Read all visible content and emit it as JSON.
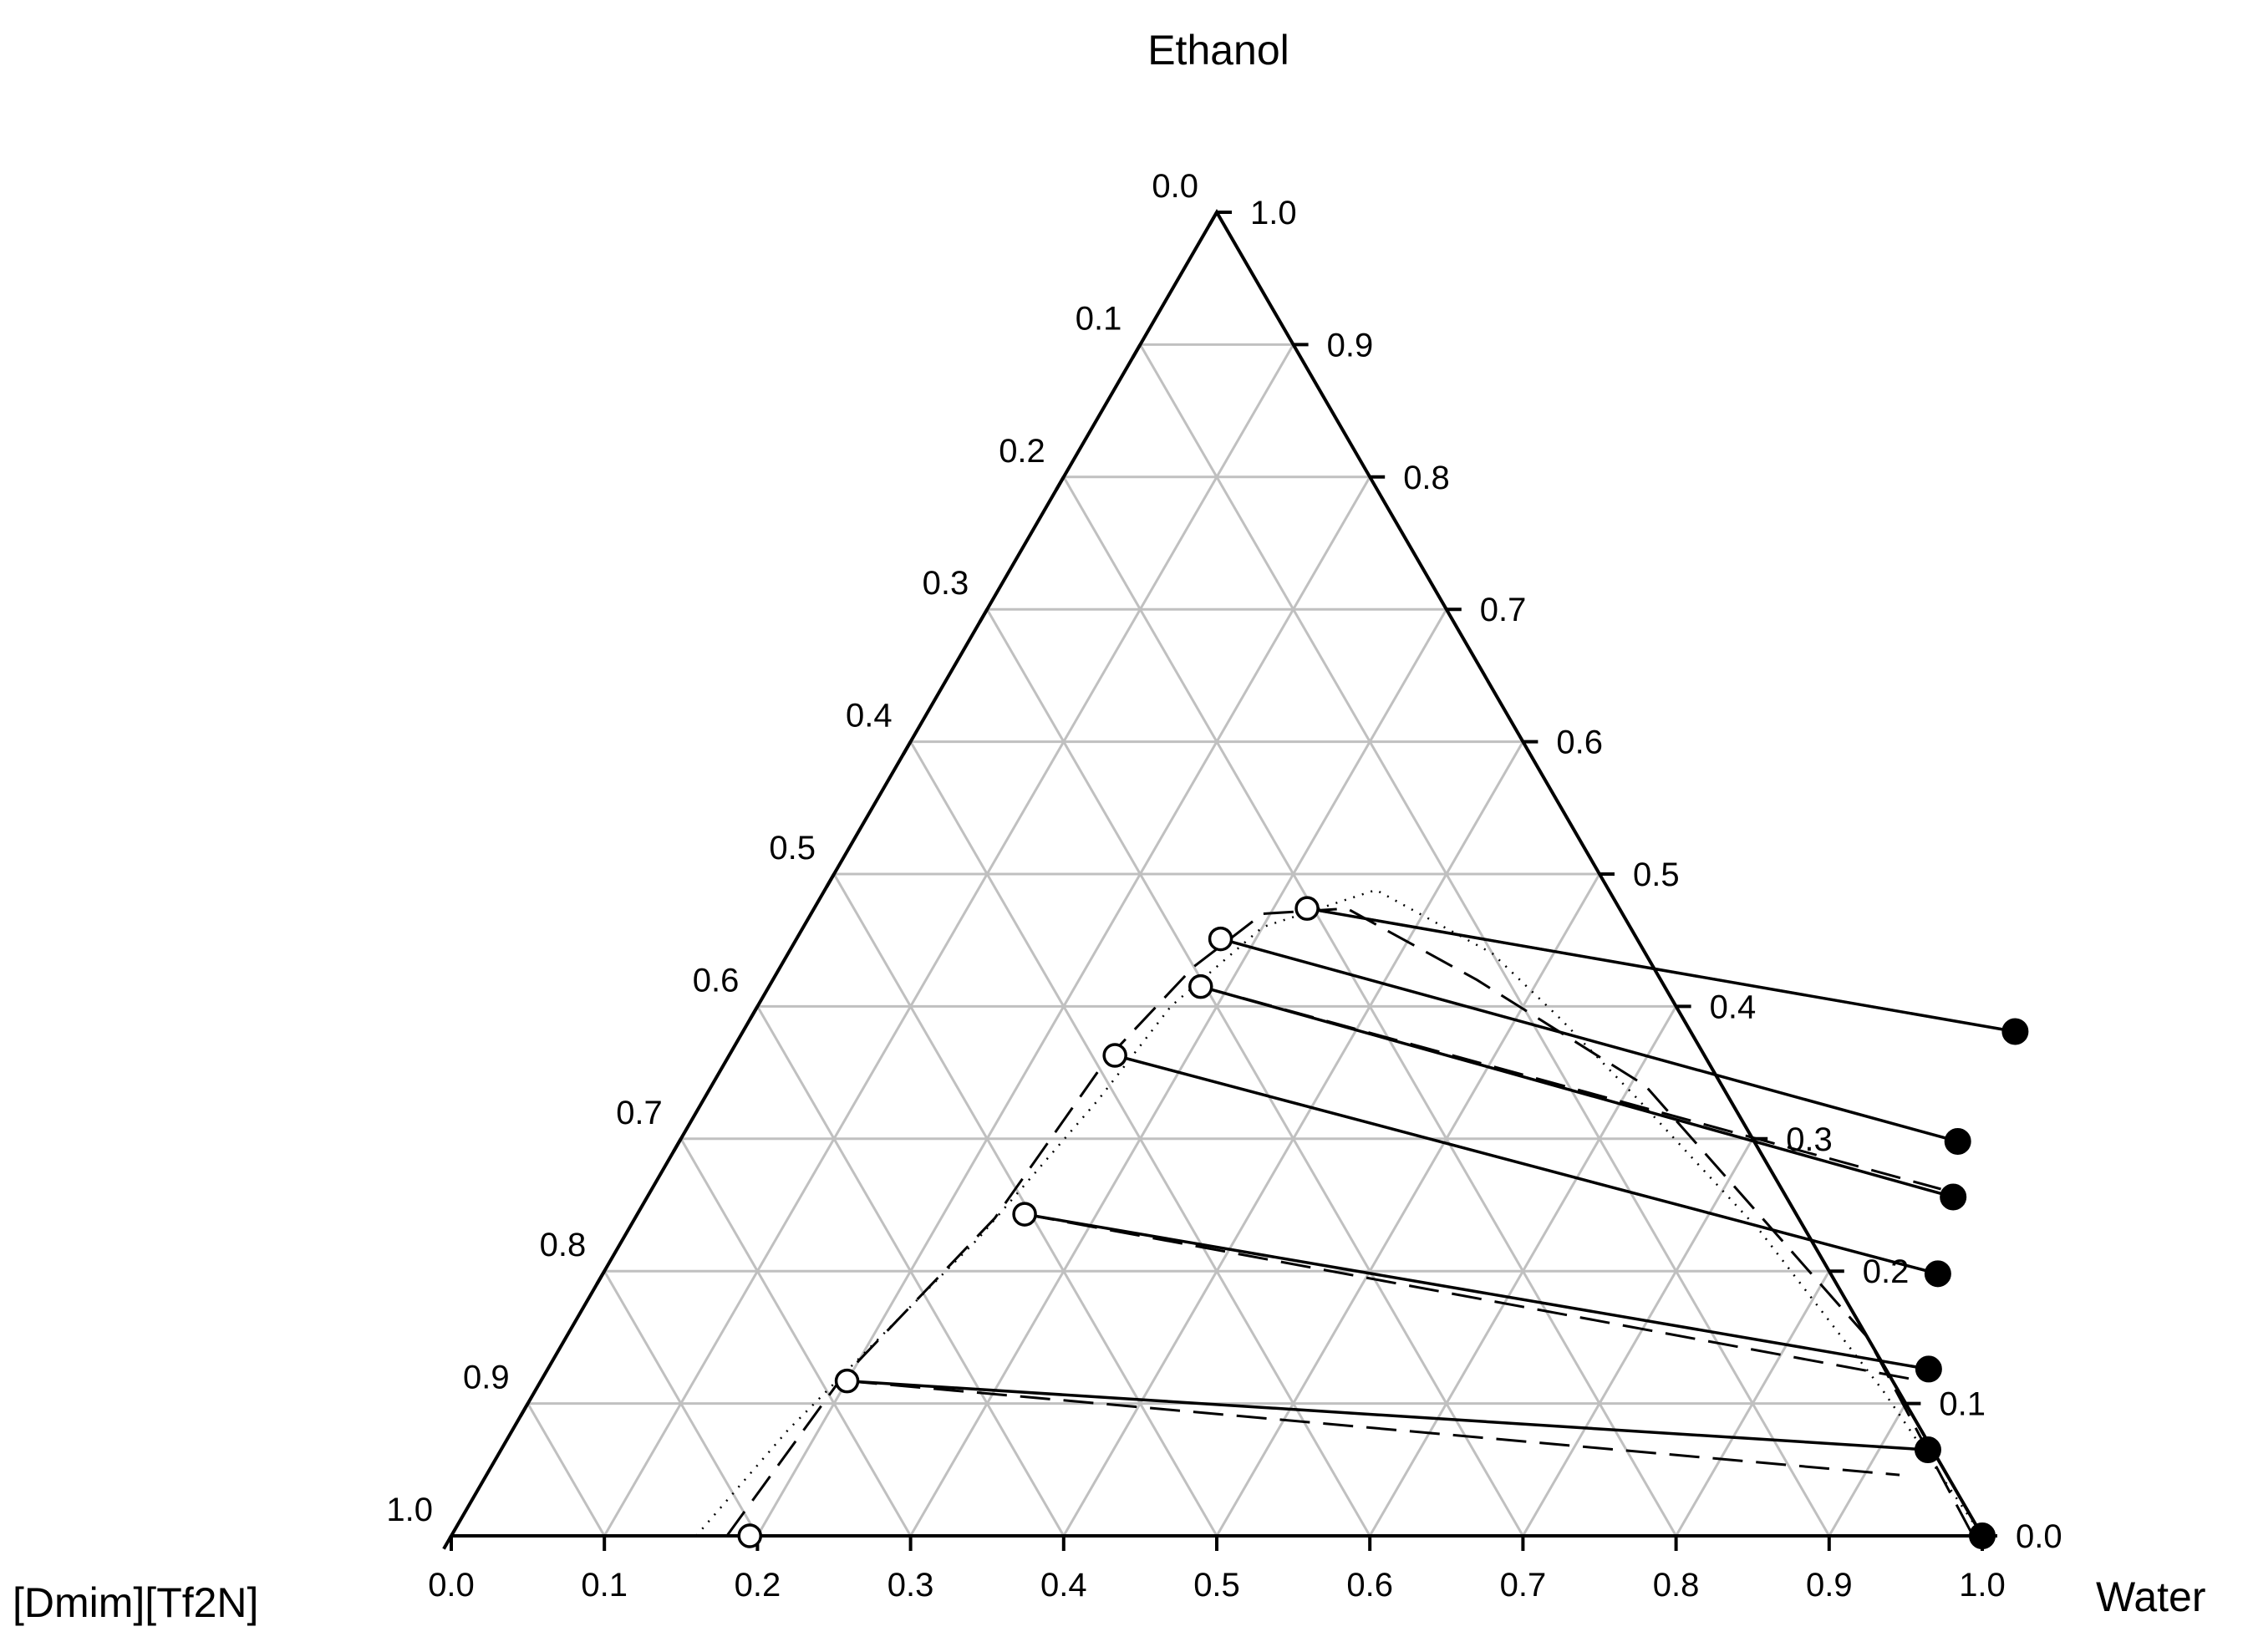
{
  "chart_data": {
    "type": "scatter",
    "subtype": "ternary",
    "title": "",
    "vertices": {
      "top": "Ethanol",
      "bottom_left": "[Dmim][Tf2N]",
      "bottom_right": "Water"
    },
    "ticks": [
      "0.0",
      "0.1",
      "0.2",
      "0.3",
      "0.4",
      "0.5",
      "0.6",
      "0.7",
      "0.8",
      "0.9",
      "1.0"
    ],
    "grid": true,
    "grid_color": "#c0c0c0",
    "axis_color": "#000000",
    "coordinates": "x = water mass fraction (bottom axis), y = ethanol mass fraction (right axis)",
    "ionic_liquid_rich_points": [
      {
        "water": 0.195,
        "ethanol": 0.0
      },
      {
        "water": 0.2,
        "ethanol": 0.117
      },
      {
        "water": 0.253,
        "ethanol": 0.243
      },
      {
        "water": 0.252,
        "ethanol": 0.363
      },
      {
        "water": 0.282,
        "ethanol": 0.415
      },
      {
        "water": 0.277,
        "ethanol": 0.451
      },
      {
        "water": 0.322,
        "ethanol": 0.474
      }
    ],
    "water_rich_points": [
      {
        "water": 1.0,
        "ethanol": 0.0
      },
      {
        "water": 0.932,
        "ethanol": 0.065
      },
      {
        "water": 0.902,
        "ethanol": 0.126
      },
      {
        "water": 0.872,
        "ethanol": 0.198
      },
      {
        "water": 0.853,
        "ethanol": 0.256
      },
      {
        "water": 0.835,
        "ethanol": 0.298
      },
      {
        "water": 0.831,
        "ethanol": 0.381
      }
    ],
    "tie_lines_experimental": [
      [
        0,
        0
      ],
      [
        1,
        1
      ],
      [
        2,
        2
      ],
      [
        3,
        3
      ],
      [
        4,
        4
      ],
      [
        5,
        5
      ],
      [
        6,
        6
      ]
    ],
    "tie_lines_calculated": [
      {
        "from": {
          "water": 0.2,
          "ethanol": 0.117
        },
        "to": {
          "water": 0.923,
          "ethanol": 0.046
        }
      },
      {
        "from": {
          "water": 0.253,
          "ethanol": 0.243
        },
        "to": {
          "water": 0.897,
          "ethanol": 0.118
        }
      },
      {
        "from": {
          "water": 0.252,
          "ethanol": 0.363
        },
        "to": {
          "water": 0.872,
          "ethanol": 0.198
        }
      },
      {
        "from": {
          "water": 0.282,
          "ethanol": 0.415
        },
        "to": {
          "water": 0.842,
          "ethanol": 0.262
        }
      },
      {
        "from": {
          "water": 0.322,
          "ethanol": 0.474
        },
        "to": {
          "water": 0.831,
          "ethanol": 0.381
        }
      }
    ],
    "binodal_dashed": [
      {
        "water": 0.18,
        "ethanol": 0.0
      },
      {
        "water": 0.195,
        "ethanol": 0.117
      },
      {
        "water": 0.235,
        "ethanol": 0.24
      },
      {
        "water": 0.248,
        "ethanol": 0.36
      },
      {
        "water": 0.27,
        "ethanol": 0.43
      },
      {
        "water": 0.295,
        "ethanol": 0.47
      },
      {
        "water": 0.348,
        "ethanol": 0.474
      },
      {
        "water": 0.46,
        "ethanol": 0.42
      },
      {
        "water": 0.61,
        "ethanol": 0.34
      },
      {
        "water": 0.85,
        "ethanol": 0.15
      },
      {
        "water": 0.994,
        "ethanol": 0.0
      }
    ],
    "binodal_dotted": [
      {
        "water": 0.16,
        "ethanol": 0.0
      },
      {
        "water": 0.18,
        "ethanol": 0.08
      },
      {
        "water": 0.232,
        "ethanol": 0.225
      },
      {
        "water": 0.258,
        "ethanol": 0.33
      },
      {
        "water": 0.27,
        "ethanol": 0.4
      },
      {
        "water": 0.3,
        "ethanol": 0.46
      },
      {
        "water": 0.36,
        "ethanol": 0.488
      },
      {
        "water": 0.46,
        "ethanol": 0.44
      },
      {
        "water": 0.53,
        "ethanol": 0.39
      },
      {
        "water": 0.61,
        "ethanol": 0.33
      },
      {
        "water": 0.74,
        "ethanol": 0.23
      },
      {
        "water": 0.88,
        "ethanol": 0.11
      },
      {
        "water": 1.0,
        "ethanol": 0.0
      }
    ]
  }
}
